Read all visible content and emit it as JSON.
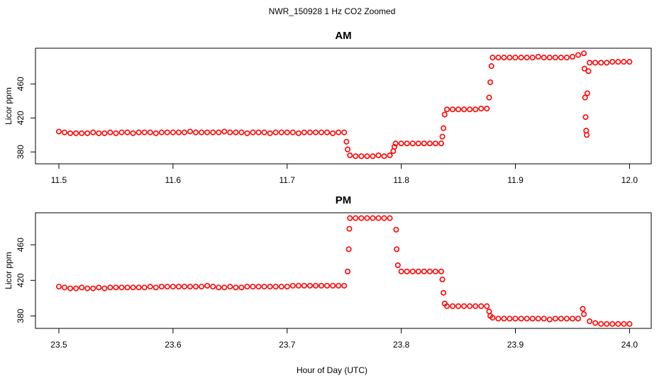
{
  "title": "NWR_150928  1 Hz CO2 Zoomed",
  "xlabel": "Hour of Day (UTC)",
  "chart_data": [
    {
      "type": "scatter",
      "title": "AM",
      "ylabel": "Licor ppm",
      "color": "#ff0000",
      "xlim": [
        11.4795,
        12.019
      ],
      "ylim": [
        366,
        502
      ],
      "xticks": [
        11.5,
        11.6,
        11.7,
        11.8,
        11.9,
        {
          "value": 12,
          "label": "12.0"
        }
      ],
      "yticks": [
        380,
        420,
        460
      ],
      "x": [
        11.5,
        11.505,
        11.51,
        11.515,
        11.52,
        11.525,
        11.53,
        11.535,
        11.54,
        11.545,
        11.55,
        11.555,
        11.56,
        11.565,
        11.57,
        11.575,
        11.58,
        11.585,
        11.59,
        11.595,
        11.6,
        11.605,
        11.61,
        11.615,
        11.62,
        11.625,
        11.63,
        11.635,
        11.64,
        11.645,
        11.65,
        11.655,
        11.66,
        11.665,
        11.67,
        11.675,
        11.68,
        11.685,
        11.69,
        11.695,
        11.7,
        11.705,
        11.71,
        11.715,
        11.72,
        11.725,
        11.73,
        11.735,
        11.74,
        11.745,
        11.75,
        11.752,
        11.753,
        11.755,
        11.76,
        11.765,
        11.77,
        11.775,
        11.78,
        11.785,
        11.79,
        11.793,
        11.794,
        11.795,
        11.8,
        11.805,
        11.81,
        11.815,
        11.82,
        11.825,
        11.83,
        11.835,
        11.836,
        11.837,
        11.838,
        11.84,
        11.845,
        11.85,
        11.855,
        11.86,
        11.865,
        11.87,
        11.875,
        11.877,
        11.878,
        11.879,
        11.88,
        11.885,
        11.89,
        11.895,
        11.9,
        11.905,
        11.91,
        11.915,
        11.92,
        11.925,
        11.93,
        11.935,
        11.94,
        11.945,
        11.95,
        11.955,
        11.96,
        11.9605,
        11.961,
        11.9615,
        11.962,
        11.9625,
        11.963,
        11.964,
        11.965,
        11.97,
        11.975,
        11.98,
        11.985,
        11.99,
        11.995,
        12.0
      ],
      "values": [
        404,
        403,
        402,
        402,
        402,
        402,
        403,
        402,
        402,
        403,
        402,
        403,
        403,
        402,
        403,
        403,
        403,
        402,
        403,
        403,
        403,
        403,
        403,
        404,
        403,
        403,
        403,
        403,
        403,
        404,
        403,
        403,
        403,
        402,
        403,
        403,
        403,
        402,
        403,
        403,
        403,
        403,
        402,
        403,
        403,
        403,
        403,
        403,
        402,
        403,
        403,
        392,
        383,
        376,
        375,
        375,
        375,
        375,
        376,
        375,
        376,
        381,
        386,
        390,
        390,
        390,
        390,
        390,
        390,
        390,
        390,
        390,
        398,
        408,
        424,
        430,
        430,
        430,
        430,
        430,
        430,
        431,
        431,
        444,
        462,
        481,
        491,
        491,
        491,
        491,
        491,
        491,
        491,
        491,
        492,
        491,
        491,
        491,
        491,
        491,
        492,
        494,
        496,
        478,
        444,
        421,
        405,
        400,
        449,
        475,
        485,
        485,
        485,
        485,
        486,
        486,
        486,
        486
      ]
    },
    {
      "type": "scatter",
      "title": "PM",
      "ylabel": "Licor ppm",
      "color": "#ff0000",
      "xlim": [
        23.4795,
        24.019
      ],
      "ylim": [
        366,
        496
      ],
      "xticks": [
        23.5,
        23.6,
        23.7,
        23.8,
        23.9,
        {
          "value": 24,
          "label": "24.0"
        }
      ],
      "yticks": [
        380,
        420,
        460
      ],
      "x": [
        23.5,
        23.505,
        23.51,
        23.515,
        23.52,
        23.525,
        23.53,
        23.535,
        23.54,
        23.545,
        23.55,
        23.555,
        23.56,
        23.565,
        23.57,
        23.575,
        23.58,
        23.585,
        23.59,
        23.595,
        23.6,
        23.605,
        23.61,
        23.615,
        23.62,
        23.625,
        23.63,
        23.635,
        23.64,
        23.645,
        23.65,
        23.655,
        23.66,
        23.665,
        23.67,
        23.675,
        23.68,
        23.685,
        23.69,
        23.695,
        23.7,
        23.705,
        23.71,
        23.715,
        23.72,
        23.725,
        23.73,
        23.735,
        23.74,
        23.745,
        23.75,
        23.753,
        23.754,
        23.7545,
        23.755,
        23.76,
        23.765,
        23.77,
        23.775,
        23.78,
        23.785,
        23.79,
        23.7955,
        23.796,
        23.797,
        23.8,
        23.805,
        23.81,
        23.815,
        23.82,
        23.825,
        23.83,
        23.835,
        23.836,
        23.837,
        23.838,
        23.84,
        23.845,
        23.85,
        23.855,
        23.86,
        23.865,
        23.87,
        23.875,
        23.877,
        23.878,
        23.88,
        23.885,
        23.89,
        23.895,
        23.9,
        23.905,
        23.91,
        23.915,
        23.92,
        23.925,
        23.93,
        23.935,
        23.94,
        23.945,
        23.95,
        23.955,
        23.959,
        23.96,
        23.965,
        23.97,
        23.975,
        23.98,
        23.985,
        23.99,
        23.995,
        24.0
      ],
      "values": [
        413,
        412,
        411,
        411,
        412,
        411,
        411,
        412,
        411,
        412,
        412,
        412,
        412,
        412,
        412,
        412,
        413,
        412,
        413,
        413,
        413,
        413,
        413,
        413,
        413,
        413,
        414,
        413,
        412,
        412,
        413,
        412,
        412,
        413,
        413,
        413,
        413,
        413,
        413,
        413,
        413,
        414,
        414,
        414,
        414,
        414,
        414,
        414,
        414,
        414,
        414,
        430,
        455,
        478,
        490,
        490,
        490,
        490,
        490,
        490,
        490,
        490,
        477,
        455,
        437,
        430,
        430,
        430,
        430,
        430,
        430,
        430,
        430,
        421,
        406,
        394,
        391,
        391,
        391,
        391,
        391,
        391,
        391,
        391,
        385,
        380,
        378,
        377,
        377,
        377,
        377,
        377,
        377,
        377,
        377,
        377,
        376,
        377,
        377,
        377,
        377,
        377,
        388,
        382,
        374,
        372,
        371,
        371,
        371,
        371,
        371,
        371
      ]
    }
  ]
}
